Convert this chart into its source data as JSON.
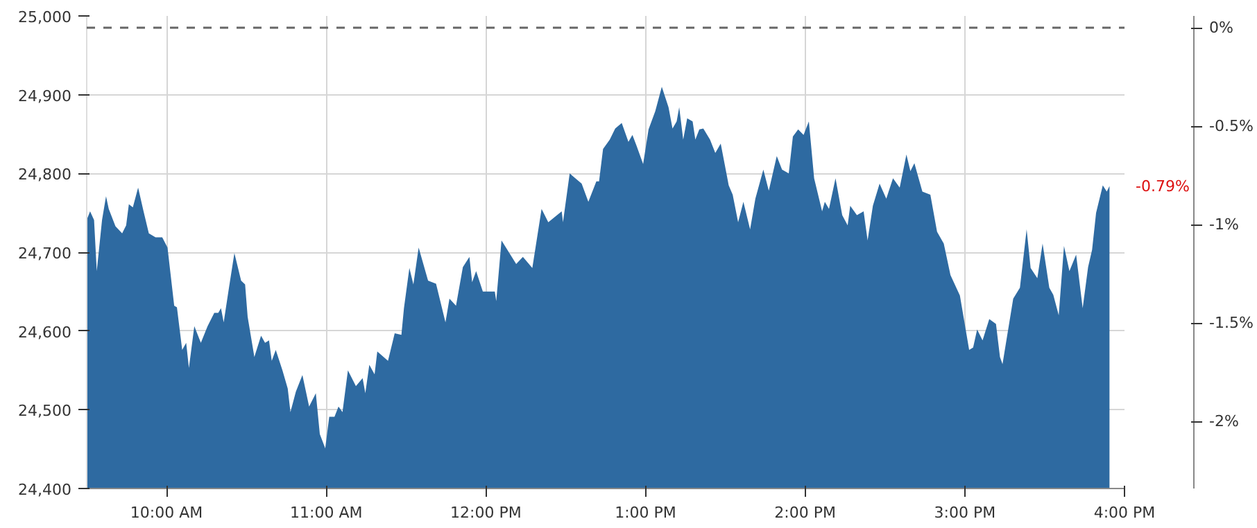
{
  "chart_data": {
    "type": "area",
    "x": [
      9.504,
      9.521,
      9.546,
      9.563,
      9.596,
      9.621,
      9.638,
      9.68,
      9.722,
      9.747,
      9.764,
      9.789,
      9.822,
      9.856,
      9.889,
      9.931,
      9.973,
      10.006,
      10.048,
      10.065,
      10.098,
      10.123,
      10.14,
      10.174,
      10.215,
      10.257,
      10.299,
      10.324,
      10.341,
      10.358,
      10.391,
      10.425,
      10.467,
      10.492,
      10.508,
      10.55,
      10.592,
      10.617,
      10.642,
      10.659,
      10.684,
      10.726,
      10.759,
      10.776,
      10.81,
      10.851,
      10.893,
      10.935,
      10.96,
      10.994,
      11.019,
      11.052,
      11.077,
      11.102,
      11.136,
      11.186,
      11.228,
      11.245,
      11.27,
      11.303,
      11.32,
      11.387,
      11.429,
      11.471,
      11.487,
      11.521,
      11.546,
      11.579,
      11.638,
      11.688,
      11.747,
      11.772,
      11.813,
      11.856,
      11.897,
      11.914,
      11.939,
      11.981,
      12.056,
      12.065,
      12.098,
      12.19,
      12.232,
      12.291,
      12.349,
      12.391,
      12.475,
      12.483,
      12.525,
      12.6,
      12.642,
      12.692,
      12.709,
      12.734,
      12.776,
      12.81,
      12.851,
      12.893,
      12.918,
      12.944,
      12.985,
      13.019,
      13.061,
      13.102,
      13.144,
      13.169,
      13.195,
      13.211,
      13.236,
      13.261,
      13.295,
      13.312,
      13.337,
      13.362,
      13.404,
      13.437,
      13.471,
      13.521,
      13.546,
      13.58,
      13.613,
      13.655,
      13.688,
      13.738,
      13.772,
      13.822,
      13.855,
      13.897,
      13.923,
      13.956,
      13.99,
      14.023,
      14.056,
      14.106,
      14.123,
      14.149,
      14.19,
      14.232,
      14.266,
      14.282,
      14.324,
      14.366,
      14.391,
      14.424,
      14.466,
      14.508,
      14.55,
      14.592,
      14.634,
      14.659,
      14.684,
      14.734,
      14.784,
      14.826,
      14.868,
      14.91,
      14.969,
      15.027,
      15.052,
      15.077,
      15.111,
      15.153,
      15.195,
      15.22,
      15.236,
      15.303,
      15.345,
      15.387,
      15.412,
      15.454,
      15.487,
      15.529,
      15.554,
      15.588,
      15.621,
      15.655,
      15.697,
      15.738,
      15.772,
      15.797,
      15.822,
      15.864,
      15.889,
      15.906
    ],
    "series": [
      {
        "color": "#2e6aa1",
        "values": [
          24743,
          24752,
          24741,
          24676,
          24741,
          24771,
          24755,
          24733,
          24724,
          24734,
          24761,
          24757,
          24782,
          24752,
          24724,
          24719,
          24719,
          24706,
          24632,
          24630,
          24576,
          24585,
          24553,
          24606,
          24585,
          24606,
          24623,
          24623,
          24629,
          24611,
          24655,
          24699,
          24664,
          24659,
          24618,
          24567,
          24594,
          24585,
          24588,
          24562,
          24576,
          24550,
          24527,
          24497,
          24523,
          24544,
          24504,
          24521,
          24469,
          24451,
          24491,
          24491,
          24504,
          24497,
          24550,
          24530,
          24540,
          24521,
          24557,
          24545,
          24574,
          24562,
          24597,
          24595,
          24629,
          24680,
          24659,
          24706,
          24664,
          24660,
          24611,
          24641,
          24632,
          24681,
          24694,
          24662,
          24676,
          24650,
          24650,
          24638,
          24715,
          24685,
          24694,
          24680,
          24755,
          24738,
          24752,
          24738,
          24800,
          24787,
          24764,
          24790,
          24790,
          24831,
          24843,
          24857,
          24864,
          24840,
          24849,
          24835,
          24812,
          24856,
          24879,
          24910,
          24884,
          24857,
          24866,
          24884,
          24843,
          24870,
          24866,
          24843,
          24856,
          24857,
          24843,
          24826,
          24838,
          24785,
          24773,
          24738,
          24764,
          24729,
          24768,
          24805,
          24778,
          24822,
          24805,
          24800,
          24847,
          24856,
          24849,
          24866,
          24794,
          24752,
          24764,
          24755,
          24794,
          24747,
          24734,
          24759,
          24747,
          24752,
          24715,
          24759,
          24787,
          24768,
          24794,
          24782,
          24824,
          24803,
          24813,
          24777,
          24773,
          24726,
          24711,
          24671,
          24645,
          24576,
          24579,
          24602,
          24588,
          24615,
          24609,
          24567,
          24558,
          24641,
          24655,
          24729,
          24680,
          24667,
          24711,
          24655,
          24646,
          24620,
          24708,
          24676,
          24697,
          24629,
          24681,
          24703,
          24750,
          24785,
          24777,
          24784
        ]
      }
    ],
    "xlim": [
      9.5,
      16
    ],
    "xticks": [
      {
        "value": 10,
        "label": "10:00 AM"
      },
      {
        "value": 11,
        "label": "11:00 AM"
      },
      {
        "value": 12,
        "label": "12:00 PM"
      },
      {
        "value": 13,
        "label": "1:00 PM"
      },
      {
        "value": 14,
        "label": "2:00 PM"
      },
      {
        "value": 15,
        "label": "3:00 PM"
      },
      {
        "value": 16,
        "label": "4:00 PM"
      }
    ],
    "ylim": [
      24400,
      25000
    ],
    "yticks": [
      {
        "value": 24400,
        "label": "24,400"
      },
      {
        "value": 24500,
        "label": "24,500"
      },
      {
        "value": 24600,
        "label": "24,600"
      },
      {
        "value": 24700,
        "label": "24,700"
      },
      {
        "value": 24800,
        "label": "24,800"
      },
      {
        "value": 24900,
        "label": "24,900"
      },
      {
        "value": 25000,
        "label": "25,000"
      }
    ],
    "y2lim": [
      -2.34,
      0.06
    ],
    "y2ticks": [
      {
        "value": 0,
        "label": "0%"
      },
      {
        "value": -0.5,
        "label": "-0.5%"
      },
      {
        "value": -1,
        "label": "-1%"
      },
      {
        "value": -1.5,
        "label": "-1.5%"
      },
      {
        "value": -2,
        "label": "-2%"
      }
    ],
    "ref_lines": [
      {
        "axis": "y2",
        "value": 0,
        "color": "#666666",
        "line_style": "dashed"
      }
    ],
    "annotations": [
      "-0.79%"
    ],
    "grid": true
  }
}
